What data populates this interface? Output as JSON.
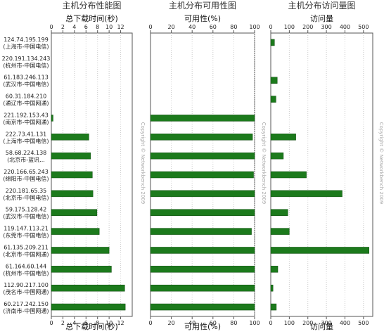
{
  "hosts": [
    {
      "ip": "124.74.195.199",
      "loc": "(上海市-中国电信)"
    },
    {
      "ip": "220.191.134.243",
      "loc": "(杭州市-中国电信)"
    },
    {
      "ip": "61.183.246.113",
      "loc": "(武汉市-中国电信)"
    },
    {
      "ip": "60.31.184.210",
      "loc": "(通辽市-中国网通)"
    },
    {
      "ip": "221.192.153.43",
      "loc": "(南京市-中国网通)"
    },
    {
      "ip": "222.73.41.131",
      "loc": "(上海市-中国电信)"
    },
    {
      "ip": "58.68.224.138",
      "loc": "(北京市-蓝讯..."
    },
    {
      "ip": "220.166.65.243",
      "loc": "(绵阳市-中国电信)"
    },
    {
      "ip": "220.181.65.35",
      "loc": "(北京市-中国电信)"
    },
    {
      "ip": "59.175.128.42",
      "loc": "(武汉市-中国电信)"
    },
    {
      "ip": "119.147.113.21",
      "loc": "(东莞市-中国电信)"
    },
    {
      "ip": "61.135.209.211",
      "loc": "(北京市-中国网通)"
    },
    {
      "ip": "61.164.60.144",
      "loc": "(杭州市-中国电信)"
    },
    {
      "ip": "112.90.217.100",
      "loc": "(茂名市-中国网通)"
    },
    {
      "ip": "60.217.242.150",
      "loc": "(济南市-中国网通)"
    }
  ],
  "watermark": "Copyright © Networkbench 2009",
  "colors": {
    "bar": "#1c7a1c",
    "bar_edge": "#0c4a0c",
    "grid": "#cccccc",
    "axis": "#555555"
  },
  "chart_data": [
    {
      "type": "bar",
      "orientation": "horizontal",
      "title": "主机分布性能图",
      "xlabel": "总下载时间(秒)",
      "xlim": [
        0,
        14
      ],
      "ticks": [
        0,
        2,
        4,
        6,
        8,
        10,
        12
      ],
      "grid": true,
      "values": [
        0,
        0,
        0,
        0,
        0.3,
        6.5,
        6.8,
        7.1,
        7.2,
        7.9,
        8.3,
        10.0,
        10.4,
        12.7,
        12.8
      ]
    },
    {
      "type": "bar",
      "orientation": "horizontal",
      "title": "主机分布可用性图",
      "xlabel": "可用性(%)",
      "xlim": [
        0,
        100
      ],
      "ticks": [
        0,
        20,
        40,
        60,
        80,
        100
      ],
      "grid": true,
      "values": [
        0,
        0,
        0,
        0,
        100,
        98,
        100,
        99,
        100,
        100,
        97,
        100,
        100,
        100,
        100
      ]
    },
    {
      "type": "bar",
      "orientation": "horizontal",
      "title": "主机分布访问量图",
      "xlabel": "访问量",
      "xlim": [
        0,
        550
      ],
      "ticks": [
        0,
        100,
        200,
        300,
        400,
        500
      ],
      "grid": true,
      "values": [
        20,
        0,
        35,
        28,
        0,
        135,
        68,
        192,
        385,
        92,
        100,
        530,
        38,
        12,
        30
      ]
    }
  ]
}
